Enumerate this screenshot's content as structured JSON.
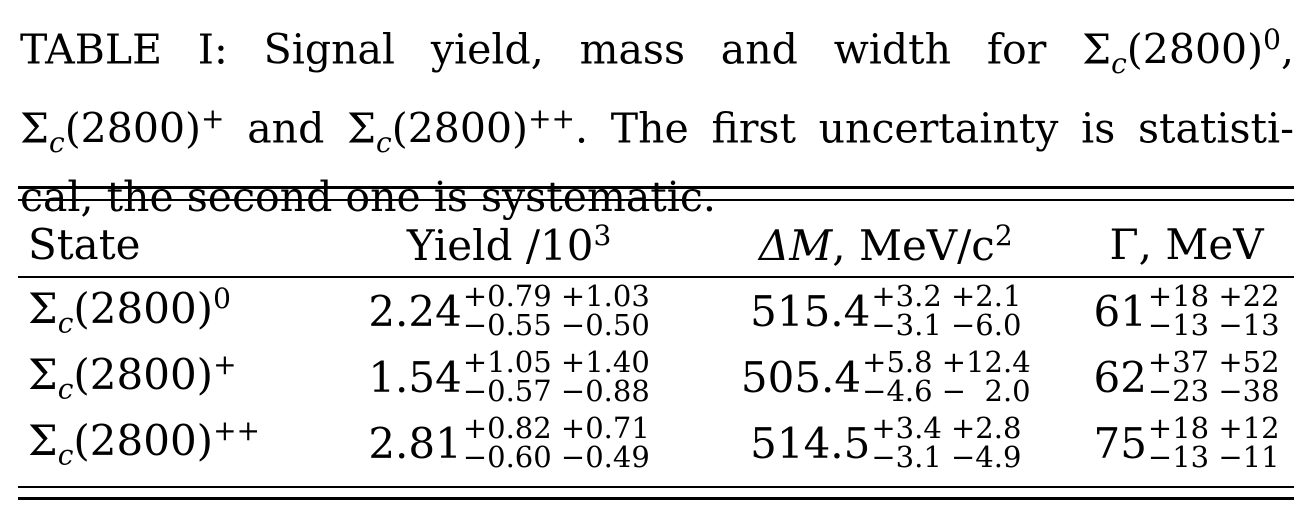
{
  "caption": {
    "line1": "TABLE I: Signal yield, mass and width for Σ",
    "line1_sup": "0",
    "line1_end": ",",
    "line2_a": "Σ",
    "line2_b": " and Σ",
    "line2_c": ". The first uncertainty is statisti-",
    "line3": "cal, the second one is systematic.",
    "sub_c": "c",
    "mass": "(2800)",
    "plus": "+",
    "plusplus": "++"
  },
  "table": {
    "headers": {
      "state": "State",
      "yield": "Yield /10",
      "yield_exp": "3",
      "delta_m": "ΔM",
      "mass_unit": ", MeV/c",
      "mass_unit_exp": "2",
      "gamma": "Γ, MeV"
    },
    "rows": [
      {
        "state_base": "Σ",
        "state_sub": "c",
        "state_mass": "(2800)",
        "state_charge": "0",
        "yield": "2.24",
        "yield_up": "+0.79 +1.03",
        "yield_dn": "−0.55 −0.50",
        "dm": "515.4",
        "dm_up": "+3.2 +2.1",
        "dm_dn": "−3.1 −6.0",
        "width": "61",
        "width_up": "+18 +22",
        "width_dn": "−13 −13"
      },
      {
        "state_base": "Σ",
        "state_sub": "c",
        "state_mass": "(2800)",
        "state_charge": "+",
        "yield": "1.54",
        "yield_up": "+1.05 +1.40",
        "yield_dn": "−0.57 −0.88",
        "dm": "505.4",
        "dm_up": "+5.8 +12.4",
        "dm_dn": "−4.6 −  2.0",
        "width": "62",
        "width_up": "+37 +52",
        "width_dn": "−23 −38"
      },
      {
        "state_base": "Σ",
        "state_sub": "c",
        "state_mass": "(2800)",
        "state_charge": "++",
        "yield": "2.81",
        "yield_up": "+0.82 +0.71",
        "yield_dn": "−0.60 −0.49",
        "dm": "514.5",
        "dm_up": "+3.4 +2.8",
        "dm_dn": "−3.1 −4.9",
        "width": "75",
        "width_up": "+18 +12",
        "width_dn": "−13 −11"
      }
    ]
  }
}
